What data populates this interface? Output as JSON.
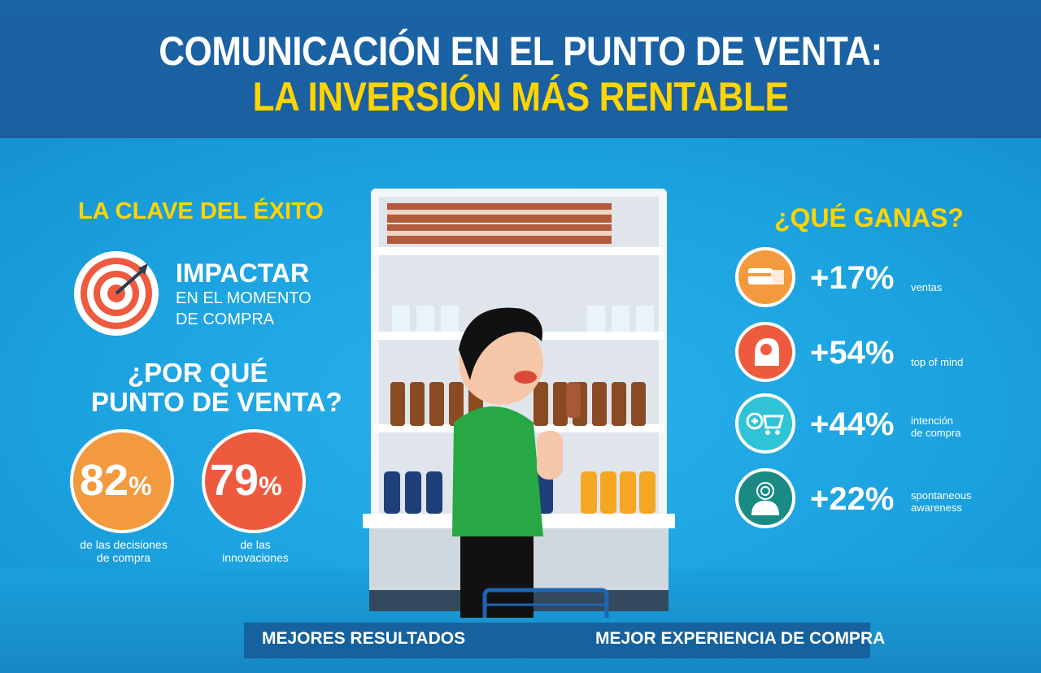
{
  "header": {
    "title_line1": "COMUNICACIÓN EN EL PUNTO DE VENTA:",
    "title_line2": "LA INVERSIÓN MÁS RENTABLE"
  },
  "left": {
    "key_heading": "LA CLAVE DEL ÉXITO",
    "impact_line1": "IMPACTAR",
    "impact_line2": "EN EL MOMENTO",
    "impact_line3": "DE COMPRA",
    "why_line1": "¿POR QUÉ",
    "why_line2": "PUNTO DE VENTA?",
    "stats": [
      {
        "value": "82",
        "unit": "%",
        "caption_line1": "de las decisiones",
        "caption_line2": "de compra",
        "color": "#f29a3d"
      },
      {
        "value": "79",
        "unit": "%",
        "caption_line1": "de las",
        "caption_line2": "innovaciones",
        "color": "#ee5a3e"
      }
    ]
  },
  "right": {
    "heading": "¿QUÉ GANAS?",
    "items": [
      {
        "value": "+17%",
        "label_line1": "ventas",
        "label_line2": "",
        "icon": "credit-card-hand-icon",
        "color": "#f29a3d"
      },
      {
        "value": "+54%",
        "label_line1": "top of mind",
        "label_line2": "",
        "icon": "head-lightbulb-icon",
        "color": "#ee5a3e"
      },
      {
        "value": "+44%",
        "label_line1": "intención",
        "label_line2": "de compra",
        "icon": "shopping-cart-plus-icon",
        "color": "#2ec3d6"
      },
      {
        "value": "+22%",
        "label_line1": "spontaneous",
        "label_line2": "awareness",
        "icon": "person-target-icon",
        "color": "#1a8b84"
      }
    ]
  },
  "bottom": {
    "left_label": "MEJORES RESULTADOS",
    "right_label": "MEJOR EXPERIENCIA DE COMPRA"
  },
  "colors": {
    "header_bg": "#1a63a6",
    "body_bg": "#1ea7e4",
    "accent_yellow": "#ffd400"
  }
}
